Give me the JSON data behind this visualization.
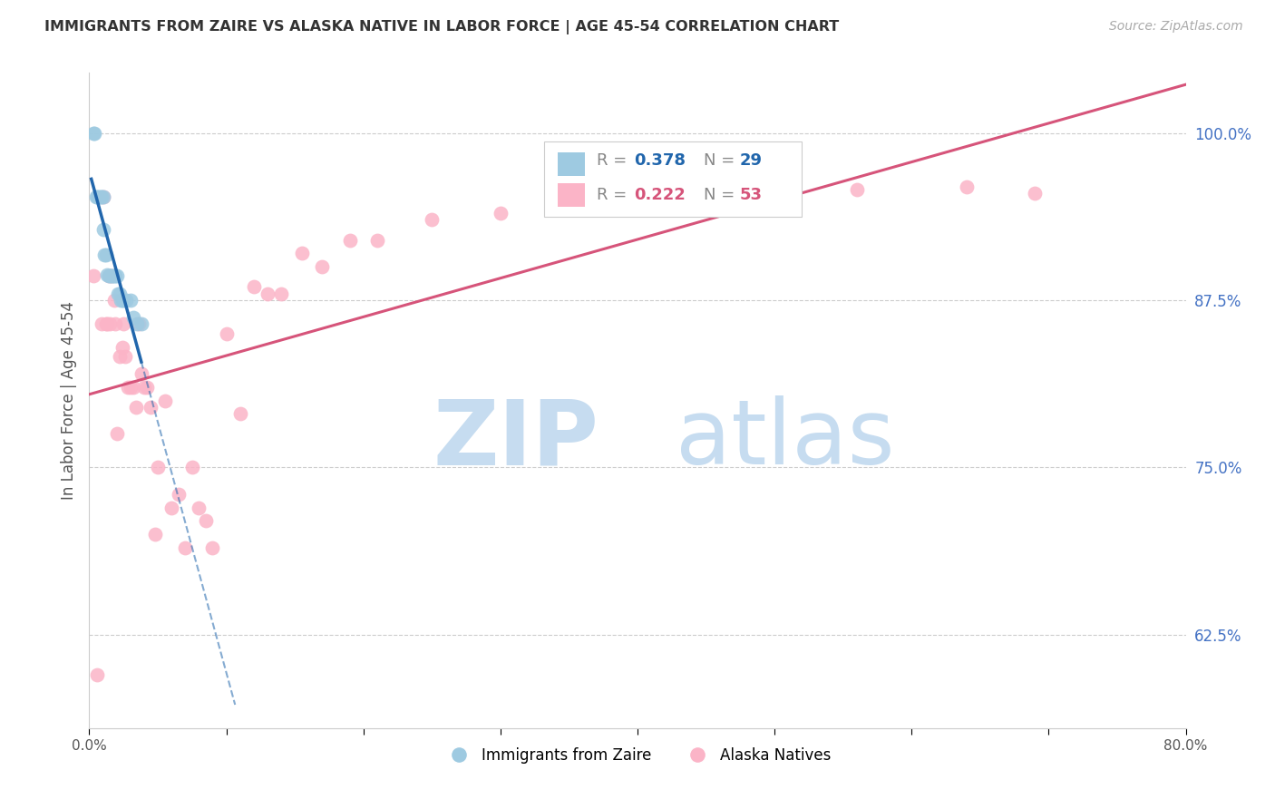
{
  "title": "IMMIGRANTS FROM ZAIRE VS ALASKA NATIVE IN LABOR FORCE | AGE 45-54 CORRELATION CHART",
  "source": "Source: ZipAtlas.com",
  "ylabel": "In Labor Force | Age 45-54",
  "xlim": [
    0.0,
    0.8
  ],
  "ylim": [
    0.555,
    1.045
  ],
  "yticks_right": [
    0.625,
    0.75,
    0.875,
    1.0
  ],
  "ytick_right_labels": [
    "62.5%",
    "75.0%",
    "87.5%",
    "100.0%"
  ],
  "grid_color": "#cccccc",
  "background_color": "#ffffff",
  "blue_scatter_x": [
    0.003,
    0.004,
    0.005,
    0.006,
    0.007,
    0.008,
    0.009,
    0.01,
    0.01,
    0.011,
    0.012,
    0.013,
    0.014,
    0.015,
    0.016,
    0.017,
    0.018,
    0.019,
    0.02,
    0.021,
    0.022,
    0.023,
    0.024,
    0.025,
    0.027,
    0.03,
    0.032,
    0.035,
    0.038
  ],
  "blue_scatter_y": [
    1.0,
    1.0,
    0.952,
    0.952,
    0.952,
    0.952,
    0.952,
    0.952,
    0.928,
    0.909,
    0.909,
    0.894,
    0.893,
    0.893,
    0.893,
    0.893,
    0.893,
    0.893,
    0.893,
    0.88,
    0.88,
    0.875,
    0.875,
    0.875,
    0.875,
    0.875,
    0.862,
    0.857,
    0.857
  ],
  "pink_scatter_x": [
    0.003,
    0.006,
    0.009,
    0.01,
    0.012,
    0.013,
    0.014,
    0.015,
    0.016,
    0.018,
    0.019,
    0.02,
    0.022,
    0.024,
    0.025,
    0.026,
    0.028,
    0.03,
    0.032,
    0.034,
    0.036,
    0.038,
    0.04,
    0.042,
    0.045,
    0.048,
    0.05,
    0.055,
    0.06,
    0.065,
    0.07,
    0.075,
    0.08,
    0.085,
    0.09,
    0.1,
    0.11,
    0.12,
    0.13,
    0.14,
    0.155,
    0.17,
    0.19,
    0.21,
    0.25,
    0.3,
    0.35,
    0.4,
    0.45,
    0.5,
    0.56,
    0.64,
    0.69
  ],
  "pink_scatter_y": [
    0.893,
    0.595,
    0.857,
    0.952,
    0.857,
    0.857,
    0.893,
    0.857,
    0.893,
    0.875,
    0.857,
    0.775,
    0.833,
    0.84,
    0.857,
    0.833,
    0.81,
    0.81,
    0.81,
    0.795,
    0.857,
    0.82,
    0.81,
    0.81,
    0.795,
    0.7,
    0.75,
    0.8,
    0.72,
    0.73,
    0.69,
    0.75,
    0.72,
    0.71,
    0.69,
    0.85,
    0.79,
    0.885,
    0.88,
    0.88,
    0.91,
    0.9,
    0.92,
    0.92,
    0.935,
    0.94,
    0.945,
    0.95,
    0.955,
    0.955,
    0.958,
    0.96,
    0.955
  ],
  "blue_R": 0.378,
  "blue_N": 29,
  "pink_R": 0.222,
  "pink_N": 53,
  "blue_color": "#9ecae1",
  "pink_color": "#fbb4c7",
  "blue_line_color": "#2166ac",
  "pink_line_color": "#d6547a",
  "watermark_zip_color": "#c6dcf0",
  "watermark_atlas_color": "#c6dcf0"
}
